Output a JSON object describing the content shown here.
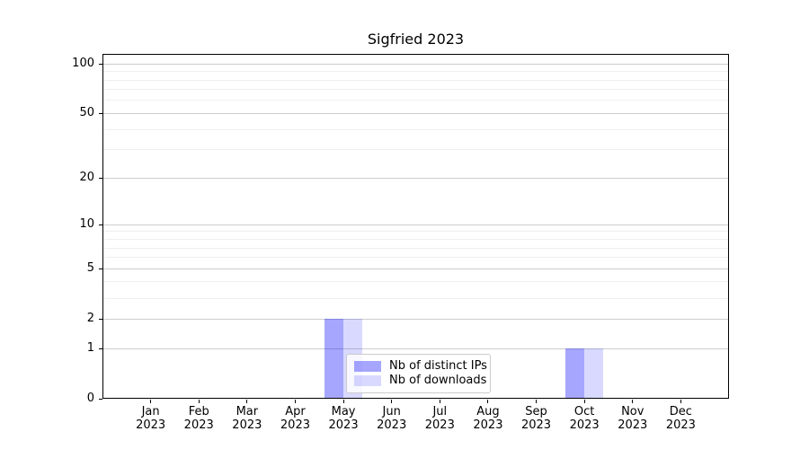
{
  "chart_data": {
    "type": "bar",
    "title": "Sigfried 2023",
    "categories": [
      "Jan",
      "Feb",
      "Mar",
      "Apr",
      "May",
      "Jun",
      "Jul",
      "Aug",
      "Sep",
      "Oct",
      "Nov",
      "Dec"
    ],
    "category_year": "2023",
    "series": [
      {
        "name": "Nb of distinct IPs",
        "color": "rgba(0,0,255,0.35)",
        "hex_on_white": "#a6a6ff",
        "values": [
          0,
          0,
          0,
          0,
          2,
          0,
          0,
          0,
          0,
          1,
          0,
          0
        ]
      },
      {
        "name": "Nb of downloads",
        "color": "rgba(0,0,255,0.15)",
        "hex_on_white": "#d9d9ff",
        "values": [
          0,
          0,
          0,
          0,
          2,
          0,
          0,
          0,
          0,
          1,
          0,
          0
        ]
      }
    ],
    "xlabel": "",
    "ylabel": "",
    "yscale": "log1p",
    "ylim": [
      0,
      115
    ],
    "y_ticks": [
      0,
      1,
      2,
      5,
      10,
      20,
      50,
      100
    ],
    "y_minor_ticks": [
      3,
      4,
      6,
      7,
      8,
      9,
      30,
      40,
      60,
      70,
      80,
      90
    ],
    "grid": {
      "which": "both",
      "major_color": "#cdcdcd",
      "minor_color": "#efefef"
    },
    "legend": {
      "position": "lower center inside",
      "border_color": "#cccccc",
      "background": "rgba(255,255,255,0.8)"
    },
    "axis_color": "#000000"
  }
}
